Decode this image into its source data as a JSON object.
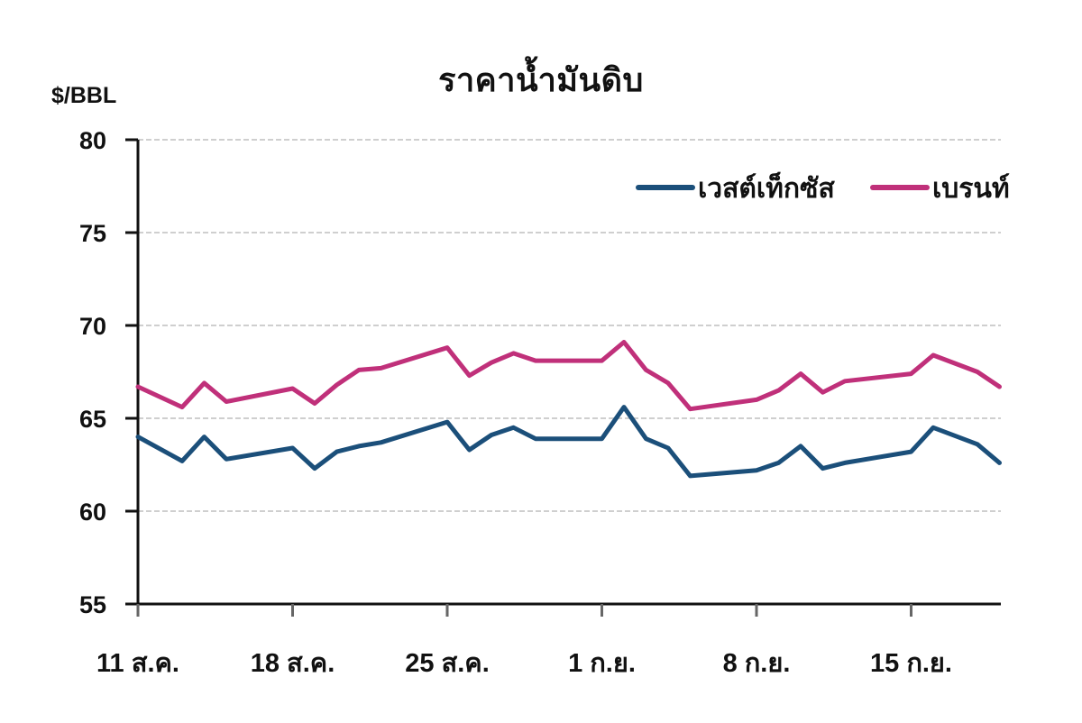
{
  "chart_data": {
    "type": "line",
    "title": "ราคาน้ำมันดิบ",
    "xlabel": "",
    "ylabel": "$/BBL",
    "ylim": [
      55,
      80
    ],
    "yticks": [
      55,
      60,
      65,
      70,
      75,
      80
    ],
    "xtick_labels": [
      "11 ส.ค.",
      "18 ส.ค.",
      "25 ส.ค.",
      "1 ก.ย.",
      "8 ก.ย.",
      "15 ก.ย."
    ],
    "grid": "horizontal dashed",
    "legend_position": "top-right inside plot",
    "x_day_offsets": [
      0,
      2,
      3,
      4,
      7,
      8,
      9,
      10,
      11,
      14,
      15,
      16,
      17,
      18,
      21,
      22,
      23,
      24,
      25,
      28,
      29,
      30,
      31,
      32,
      35,
      36,
      38,
      39
    ],
    "series": [
      {
        "name": "เวสต์เท็กซัส",
        "color": "#1b4f7a",
        "values": [
          64.0,
          62.7,
          64.0,
          62.8,
          63.4,
          62.3,
          63.2,
          63.5,
          63.7,
          64.8,
          63.3,
          64.1,
          64.5,
          63.9,
          63.9,
          65.6,
          63.9,
          63.4,
          61.9,
          62.2,
          62.6,
          63.5,
          62.3,
          62.6,
          63.2,
          64.5,
          63.6,
          62.6
        ]
      },
      {
        "name": "เบรนท์",
        "color": "#c0307a",
        "values": [
          66.7,
          65.6,
          66.9,
          65.9,
          66.6,
          65.8,
          66.8,
          67.6,
          67.7,
          68.8,
          67.3,
          68.0,
          68.5,
          68.1,
          68.1,
          69.1,
          67.6,
          66.9,
          65.5,
          66.0,
          66.5,
          67.4,
          66.4,
          67.0,
          67.4,
          68.4,
          67.5,
          66.7
        ]
      }
    ]
  }
}
